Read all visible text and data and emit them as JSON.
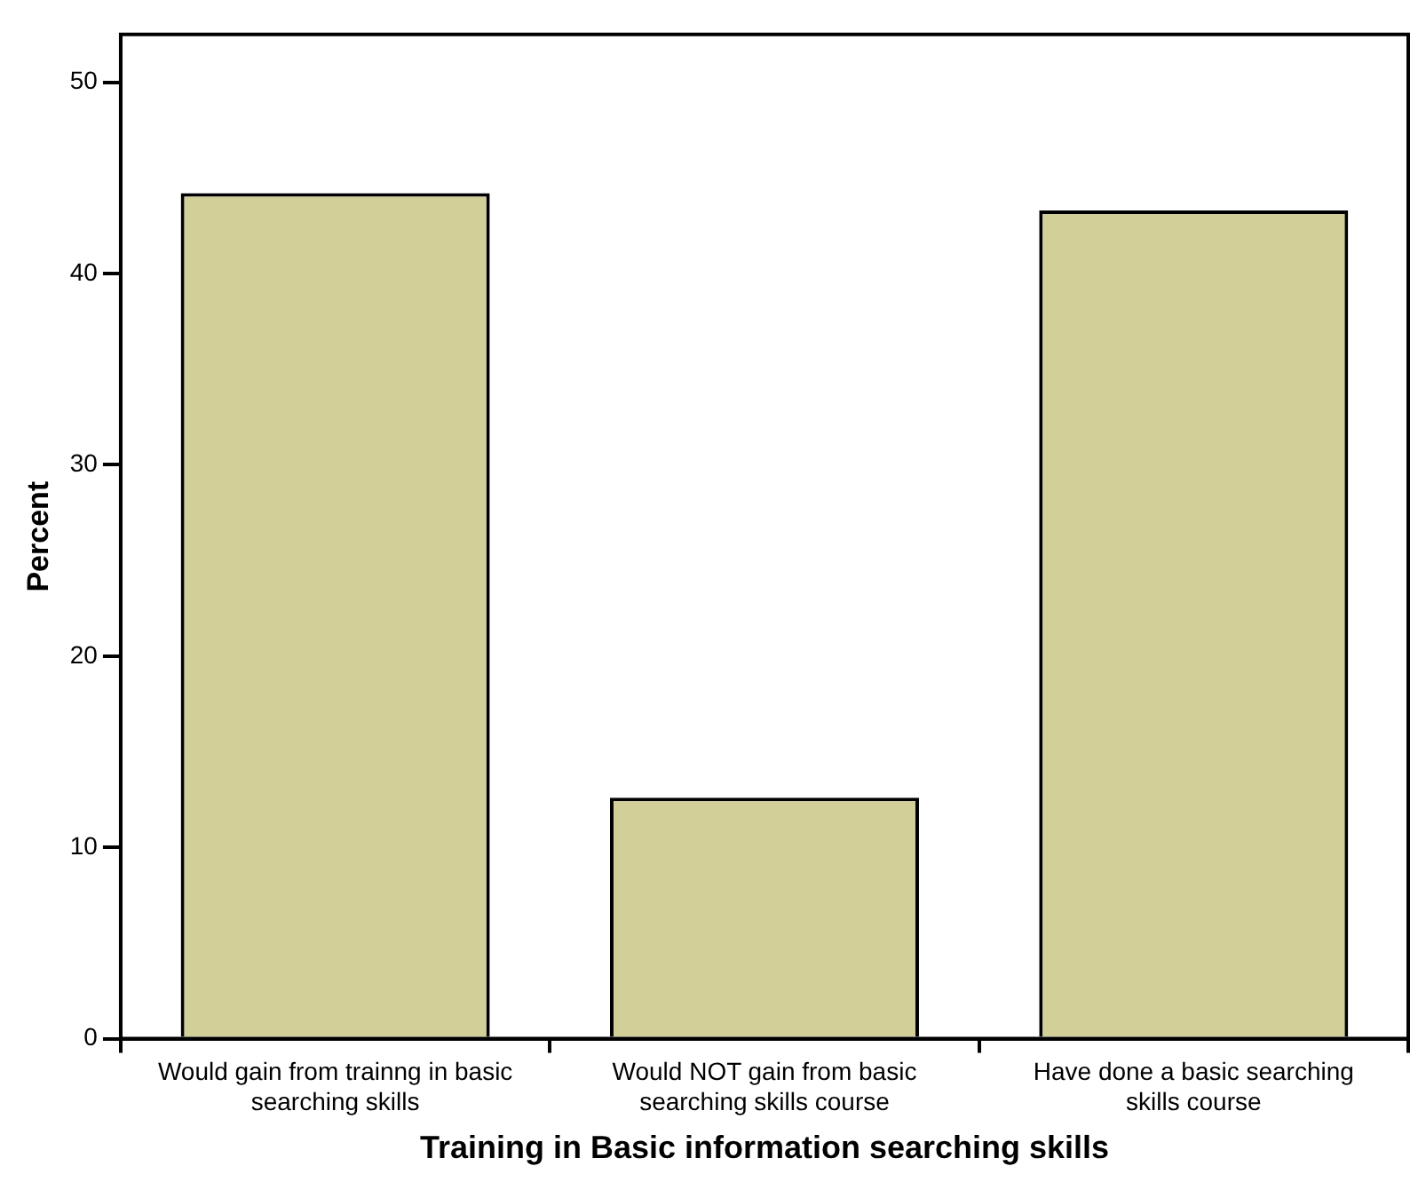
{
  "chart_data": {
    "type": "bar",
    "xlabel": "Training in Basic information searching skills",
    "ylabel": "Percent",
    "categories": [
      "Would gain from trainng in basic searching skills",
      "Would NOT gain from basic searching skills course",
      "Have done a basic searching skills course"
    ],
    "values": [
      44.2,
      12.6,
      43.3
    ],
    "color": "#d3cf99",
    "ylim": [
      0,
      52.5
    ],
    "yticks": [
      0,
      10,
      20,
      30,
      40,
      50
    ]
  }
}
